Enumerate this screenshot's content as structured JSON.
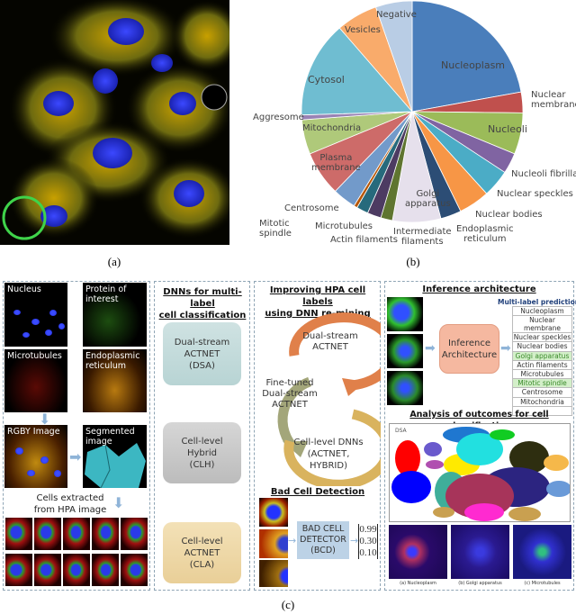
{
  "captions": {
    "a": "(a)",
    "b": "(b)",
    "c": "(c)"
  },
  "chart_data": {
    "type": "pie",
    "unit": "percent (estimated)",
    "slices": [
      {
        "label": "Nucleoplasm",
        "value": 22,
        "color": "#4a7ebb"
      },
      {
        "label": "Nuclear membrane",
        "value": 3,
        "color": "#c0504d"
      },
      {
        "label": "Nucleoli",
        "value": 6,
        "color": "#9bbb59"
      },
      {
        "label": "Nucleoli fibrillar",
        "value": 3,
        "color": "#8064a2"
      },
      {
        "label": "Nuclear speckles",
        "value": 4,
        "color": "#4bacc6"
      },
      {
        "label": "Nuclear bodies",
        "value": 4.5,
        "color": "#f79646"
      },
      {
        "label": "Endoplasmic reticulum",
        "value": 3,
        "color": "#2c4d75"
      },
      {
        "label": "Golgi apparatus",
        "value": 7,
        "color": "#e6e0ec"
      },
      {
        "label": "Intermediate filaments",
        "value": 1.7,
        "color": "#5f7530"
      },
      {
        "label": "Actin filaments",
        "value": 2,
        "color": "#4d3b62"
      },
      {
        "label": "Microtubules",
        "value": 1.7,
        "color": "#276a7c"
      },
      {
        "label": "Mitotic spindle",
        "value": 0.5,
        "color": "#b65708"
      },
      {
        "label": "Centrosome",
        "value": 3.4,
        "color": "#729aca"
      },
      {
        "label": "Plasma membrane",
        "value": 6.5,
        "color": "#cd6b69"
      },
      {
        "label": "Mitochondria",
        "value": 5,
        "color": "#afc97a"
      },
      {
        "label": "Aggresome",
        "value": 0.7,
        "color": "#9983b5"
      },
      {
        "label": "Cytosol",
        "value": 14,
        "color": "#6fbdd1"
      },
      {
        "label": "Vesicles",
        "value": 6,
        "color": "#f9ab6b"
      },
      {
        "label": "Negative",
        "value": 5.3,
        "color": "#b9cde5"
      }
    ],
    "display_labels": {
      "nucleoplasm": "Nucleoplasm",
      "nuclear_membrane": "Nuclear\nmembrane",
      "nucleoli": "Nucleoli",
      "nucleoli_fibrillar": "Nucleoli fibrillar",
      "nuclear_speckles": "Nuclear speckles",
      "nuclear_bodies": "Nuclear bodies",
      "er": "Endoplasmic\nreticulum",
      "golgi": "Golgi\napparatus",
      "intermediate": "Intermediate\nfilaments",
      "actin": "Actin filaments",
      "microtubules": "Microtubules",
      "mitotic": "Mitotic\nspindle",
      "centrosome": "Centrosome",
      "plasma": "Plasma\nmembrane",
      "mitochondria": "Mitochondria",
      "aggresome": "Aggresome",
      "cytosol": "Cytosol",
      "vesicles": "Vesicles",
      "negative": "Negative"
    }
  },
  "panel_c": {
    "input": {
      "nucleus": "Nucleus",
      "protein": "Protein of\ninterest",
      "microtubules": "Microtubules",
      "er": "Endoplasmic\nreticulum",
      "rgby": "RGBY Image",
      "segmented": "Segmented\nimage",
      "cells_extracted": "Cells extracted\nfrom HPA image"
    },
    "dnns": {
      "title": "DNNs for multi-label\ncell classification",
      "models": [
        {
          "label": "Dual-stream\nACTNET\n(DSA)",
          "color": "#cfe2e2"
        },
        {
          "label": "Cell-level\nHybrid\n(CLH)",
          "color": "#c9c9c9"
        },
        {
          "label": "Cell-level\nACTNET\n(CLA)",
          "color": "#efd8a9"
        }
      ]
    },
    "improving": {
      "title": "Improving HPA cell labels\nusing DNN re-mining",
      "stage1": "Dual-stream\nACTNET",
      "stage2": "Fine-tuned\nDual-stream\nACTNET",
      "stage3": "Cell-level DNNs\n(ACTNET, HYBRID)",
      "colors": [
        "#e0804a",
        "#a3a67a",
        "#d9b35e"
      ]
    },
    "bad_cell": {
      "title": "Bad Cell Detection",
      "detector": "BAD CELL\nDETECTOR\n(BCD)",
      "scores": [
        "0.99",
        "0.30",
        "0.10"
      ]
    },
    "inference": {
      "title": "Inference architecture",
      "box": "Inference\nArchitecture",
      "prediction_title": "Multi-label prediction",
      "labels": [
        {
          "text": "Nucleoplasm",
          "highlight": false
        },
        {
          "text": "Nuclear membrane",
          "highlight": false
        },
        {
          "text": "Nuclear speckles",
          "highlight": false
        },
        {
          "text": "Nuclear bodies",
          "highlight": false
        },
        {
          "text": "Golgi apparatus",
          "highlight": true
        },
        {
          "text": "Actin filaments",
          "highlight": false
        },
        {
          "text": "Microtubules",
          "highlight": false
        },
        {
          "text": "Mitotic spindle",
          "highlight": true
        },
        {
          "text": "Centrosome",
          "highlight": false
        },
        {
          "text": "Mitochondria",
          "highlight": false
        },
        {
          "text": "...",
          "highlight": false
        }
      ]
    },
    "analysis": {
      "title": "Analysis of outcomes for cell classification",
      "tsne_label": "DSA",
      "heatmap_captions": [
        "(a) Nucleoplasm",
        "(b) Golgi apparatus",
        "(c) Microtubules"
      ]
    }
  }
}
